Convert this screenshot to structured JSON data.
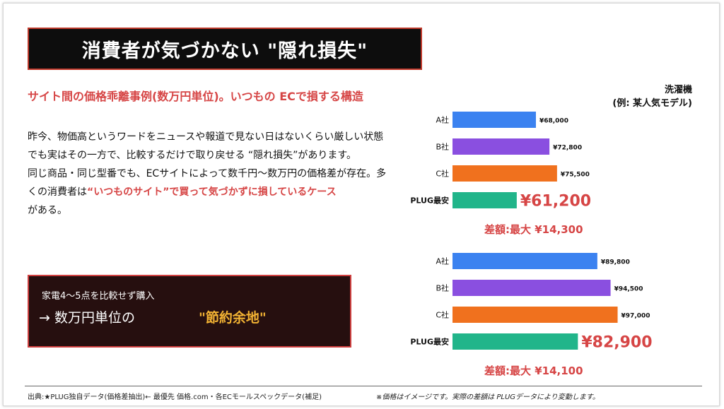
{
  "title": "消費者が気づかない \"隠れ損失\"",
  "subtitle": "サイト間の価格乖離事例(数万円単位)。いつもの ECで損する構造",
  "body": {
    "p1": "昨今、物価高というワードをニュースや報道で見ない日はないくらい厳しい状態",
    "p2": "でも実はその一方で、比較するだけで取り戻せる “隠れ損失”があります。",
    "p3_a": "同じ商品・同じ型番でも、ECサイトによって数千円〜数万円の価格差が存在。多くの消費者は",
    "p3_highlight": "“いつものサイト”で買って気づかずに損しているケース",
    "p3_b": "がある。"
  },
  "callout": {
    "line1": "家電4〜5点を比較せず購入",
    "line2": "→ 数万円単位の",
    "highlight": "\"節約余地\""
  },
  "chart_title": {
    "line1": "洗濯機",
    "line2": "(例: 某人気モデル)"
  },
  "chart_data": [
    {
      "type": "bar",
      "orientation": "horizontal",
      "categories": [
        "A社",
        "B社",
        "C社",
        "PLUG最安"
      ],
      "values": [
        68000,
        72800,
        75500,
        61200
      ],
      "value_labels": [
        "¥68,000",
        "¥72,800",
        "¥75,500",
        "¥61,200"
      ],
      "colors": [
        "#3b82f0",
        "#8a4fe0",
        "#f0711e",
        "#21b58a"
      ],
      "annotation": "差額:最大 ¥14,300"
    },
    {
      "type": "bar",
      "orientation": "horizontal",
      "categories": [
        "A社",
        "B社",
        "C社",
        "PLUG最安"
      ],
      "values": [
        89800,
        94500,
        97000,
        82900
      ],
      "value_labels": [
        "¥89,800",
        "¥94,500",
        "¥97,000",
        "¥82,900"
      ],
      "colors": [
        "#3b82f0",
        "#8a4fe0",
        "#f0711e",
        "#21b58a"
      ],
      "annotation": "差額:最大 ¥14,100"
    }
  ],
  "accent_colors": {
    "red": "#d64545",
    "gold": "#f2b233"
  },
  "footer": {
    "source": "出典:★PLUG独自データ(価格差抽出)← 最優先 価格.com・各ECモールスペックデータ(補足)",
    "note": "※価格はイメージです。実際の差額は PLUGデータにより変動します。"
  }
}
